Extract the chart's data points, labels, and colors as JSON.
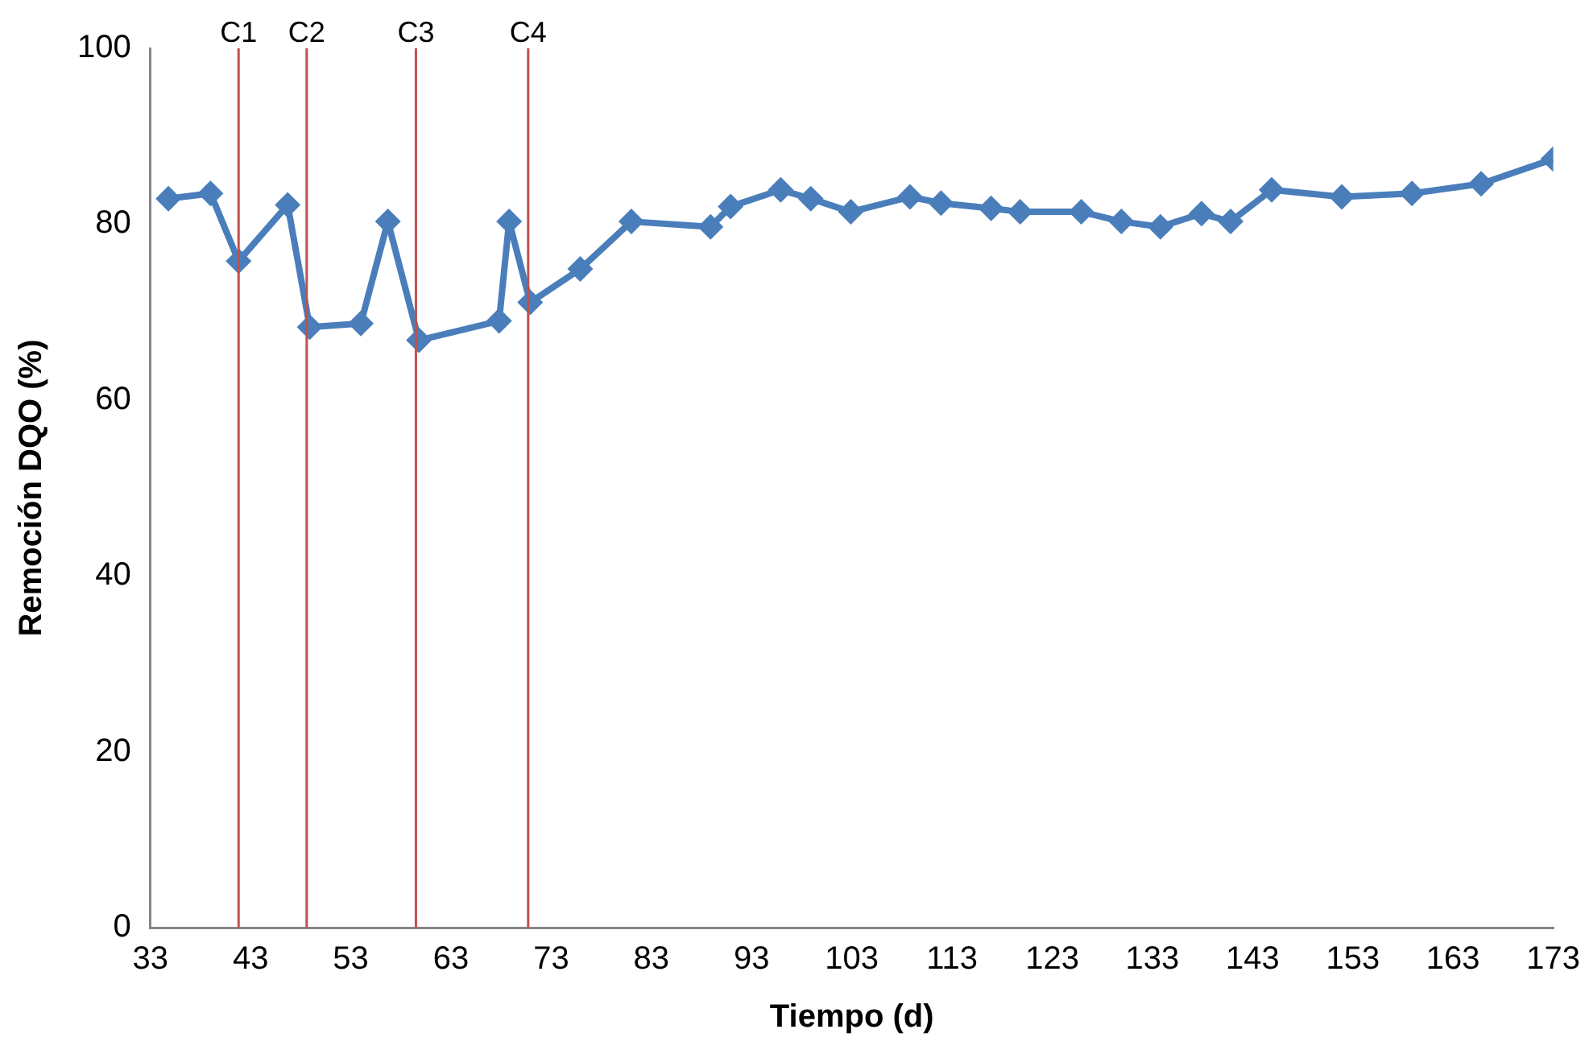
{
  "chart_data": {
    "type": "line",
    "xlabel": "Tiempo (d)",
    "ylabel": "Remoción DQO (%)",
    "xlim": [
      33,
      173
    ],
    "xticks": [
      33,
      43,
      53,
      63,
      73,
      83,
      93,
      103,
      113,
      123,
      133,
      143,
      153,
      163,
      173
    ],
    "ylim": [
      0,
      100
    ],
    "yticks": [
      0,
      20,
      40,
      60,
      80,
      100
    ],
    "grid": false,
    "legend": false,
    "marker": "diamond",
    "line_style": "solid",
    "series": [
      {
        "color": "#4a7ebb",
        "x": [
          34.8,
          39,
          41.8,
          46.7,
          48.9,
          54,
          56.7,
          59.8,
          67.8,
          68.8,
          70.9,
          75.9,
          81,
          88.9,
          90.9,
          95.9,
          98.9,
          102.9,
          108.8,
          111.9,
          116.9,
          119.8,
          125.9,
          129.9,
          133.8,
          137.9,
          140.8,
          144.9,
          151.9,
          158.9,
          165.8,
          173
        ],
        "values": [
          82.9,
          83.5,
          75.8,
          82.2,
          68.3,
          68.7,
          80.3,
          66.8,
          69,
          80.3,
          71.1,
          74.9,
          80.3,
          79.7,
          82,
          83.9,
          82.9,
          81.4,
          83.1,
          82.4,
          81.8,
          81.4,
          81.4,
          80.3,
          79.7,
          81.2,
          80.3,
          83.9,
          83.1,
          83.5,
          84.6,
          87.4
        ]
      }
    ],
    "ref_lines": [
      {
        "axis": "x",
        "value": 41.8,
        "label": "C1",
        "color": "#c0504d"
      },
      {
        "axis": "x",
        "value": 48.6,
        "label": "C2",
        "color": "#c0504d"
      },
      {
        "axis": "x",
        "value": 59.5,
        "label": "C3",
        "color": "#c0504d"
      },
      {
        "axis": "x",
        "value": 70.7,
        "label": "C4",
        "color": "#c0504d"
      }
    ]
  }
}
